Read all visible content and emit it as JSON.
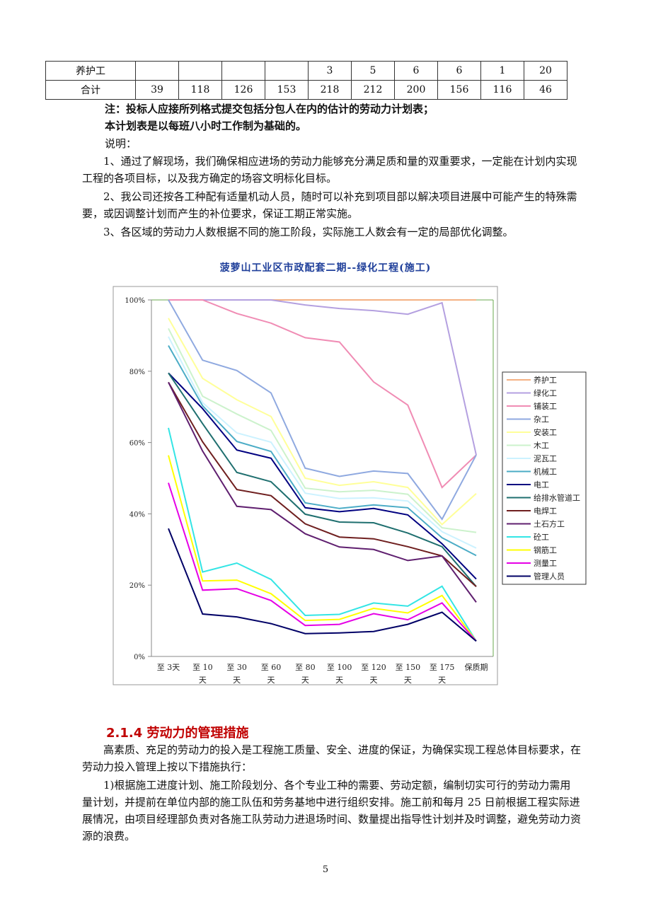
{
  "table": {
    "rows": [
      {
        "label": "养护工",
        "values": [
          "",
          "",
          "",
          "",
          "3",
          "5",
          "6",
          "6",
          "1",
          "20"
        ]
      },
      {
        "label": "合计",
        "values": [
          "39",
          "118",
          "126",
          "153",
          "218",
          "212",
          "200",
          "156",
          "116",
          "46"
        ]
      }
    ]
  },
  "notes": {
    "note1": "注：投标人应接所列格式提交包括分包人在内的估计的劳动力计划表；",
    "note2": "本计划表是以每班八小时工作制为基础的。",
    "explain_label": "说明：",
    "item1": "1、通过了解现场，我们确保相应进场的劳动力能够充分满足质和量的双重要求，一定能在计划内实现工程的各项目标，以及我方确定的场容文明标化目标。",
    "item2": "2、我公司还按各工种配有适量机动人员，随时可以补充到项目部以解决项目进展中可能产生的特殊需要，或因调整计划而产生的补位要求，保证工期正常实施。",
    "item3": "3、各区域的劳动力人数根据不同的施工阶段，实际施工人数会有一定的局部优化调整。"
  },
  "chart_data": {
    "type": "line",
    "title": "菠萝山工业区市政配套二期--绿化工程(施工)",
    "x": [
      "至 3天",
      "至 10 天",
      "至 30 天",
      "至 60 天",
      "至 80 天",
      "至 100 天",
      "至 120 天",
      "至 150 天",
      "至 175 天",
      "保质期"
    ],
    "y_ticks": [
      "0%",
      "20%",
      "40%",
      "60%",
      "80%",
      "100%"
    ],
    "ylim": [
      0,
      100
    ],
    "legend_position": "right",
    "series": [
      {
        "name": "养护工",
        "color": "#f4b183",
        "values": [
          100,
          100,
          100,
          100,
          100,
          100,
          100,
          100,
          100,
          100
        ]
      },
      {
        "name": "绿化工",
        "color": "#b4a0e0",
        "values": [
          100,
          100,
          100,
          100,
          98.6,
          97.6,
          97,
          96,
          99.2,
          56.5
        ]
      },
      {
        "name": "铺装工",
        "color": "#f08cb4",
        "values": [
          100,
          100,
          96.2,
          93.5,
          89.4,
          88.2,
          77,
          70.5,
          47.4,
          56.5
        ]
      },
      {
        "name": "杂工",
        "color": "#8fa9e0",
        "values": [
          100,
          83.1,
          80.2,
          73.9,
          52.8,
          50.5,
          52,
          51.3,
          38.5,
          56.5
        ]
      },
      {
        "name": "安装工",
        "color": "#ffff99",
        "values": [
          94.9,
          78,
          72,
          67.3,
          50,
          48,
          49,
          47.4,
          37,
          45.7
        ]
      },
      {
        "name": "木工",
        "color": "#ccf2cc",
        "values": [
          92,
          73,
          68,
          63.4,
          47.2,
          46.2,
          46.6,
          45.5,
          36.1,
          34.8
        ]
      },
      {
        "name": "泥瓦工",
        "color": "#ccf2ff",
        "values": [
          89.7,
          71.2,
          62.7,
          60.1,
          45.8,
          44.3,
          44.5,
          43.6,
          35,
          30.4
        ]
      },
      {
        "name": "机械工",
        "color": "#4bacc6",
        "values": [
          87.2,
          70.3,
          60.3,
          57.5,
          43.1,
          41.5,
          42.5,
          41.7,
          33.3,
          28.3
        ]
      },
      {
        "name": "电工",
        "color": "#000080",
        "values": [
          79.5,
          69.5,
          57.9,
          55.6,
          41.7,
          40.6,
          41.5,
          39.7,
          31.6,
          21.7
        ]
      },
      {
        "name": "给排水管道工",
        "color": "#1f6f6f",
        "values": [
          79.5,
          65.3,
          51.6,
          49,
          39.9,
          37.7,
          37.5,
          34.6,
          30.8,
          19.6
        ]
      },
      {
        "name": "电焊工",
        "color": "#6f1f1f",
        "values": [
          76.9,
          60.2,
          46.8,
          45.1,
          37.2,
          33.5,
          33,
          30.8,
          28.2,
          19.6
        ]
      },
      {
        "name": "土石方工",
        "color": "#5f1f6f",
        "values": [
          76.9,
          57.6,
          42.1,
          41.2,
          34.4,
          30.7,
          30,
          26.9,
          28.2,
          15.2
        ]
      },
      {
        "name": "砼工",
        "color": "#33e5e5",
        "values": [
          64.1,
          23.7,
          26.2,
          21.6,
          11.5,
          11.8,
          15,
          14.1,
          19.7,
          4.3
        ]
      },
      {
        "name": "钢筋工",
        "color": "#ffff00",
        "values": [
          56.4,
          21.2,
          21.4,
          17.6,
          10.1,
          10.4,
          13.5,
          12.2,
          17.1,
          4.3
        ]
      },
      {
        "name": "测量工",
        "color": "#e600e6",
        "values": [
          48.7,
          18.6,
          19,
          15.7,
          8.7,
          9,
          12,
          10.3,
          15,
          4.3
        ]
      },
      {
        "name": "管理人员",
        "color": "#000066",
        "values": [
          35.9,
          11.9,
          11.1,
          9.2,
          6.4,
          6.6,
          7,
          9,
          12.4,
          4.3
        ]
      }
    ]
  },
  "section": {
    "heading": "2.1.4 劳动力的管理措施",
    "p1": "高素质、充足的劳动力的投入是工程施工质量、安全、进度的保证，为确保实现工程总体目标要求，在劳动力投入管理上按以下措施执行：",
    "p2": "1)根据施工进度计划、施工阶段划分、各个专业工种的需要、劳动定额，编制切实可行的劳动力需用量计划，并提前在单位内部的施工队伍和劳务基地中进行组织安排。施工前和每月 25 日前根据工程实际进展情况，由项目经理部负责对各施工队劳动力进退场时间、数量提出指导性计划并及时调整，避免劳动力资源的浪费。"
  },
  "page_number": "5"
}
